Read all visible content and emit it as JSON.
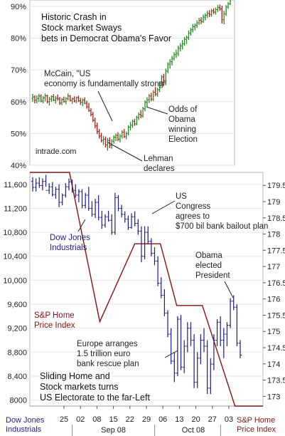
{
  "chart_data": [
    {
      "type": "bar",
      "subtype": "ohlc",
      "title": "Historic Crash in Stock market Sways bets in Democrat Obama's Favor",
      "source": "intrade.com",
      "y_unit": "%",
      "y_ticks": [
        "90%",
        "80%",
        "70%",
        "60%",
        "50%",
        "40%"
      ],
      "ylim": [
        40,
        92
      ],
      "grid": true,
      "series": [
        {
          "values": [
            [
              61,
              62.5,
              60,
              61.5
            ],
            [
              61.5,
              62,
              59.5,
              60.5
            ],
            [
              60.5,
              62,
              59.5,
              61
            ],
            [
              61,
              62.5,
              60,
              61.8
            ],
            [
              61.8,
              62.3,
              59.8,
              60.2
            ],
            [
              60.2,
              61.8,
              59.5,
              61.2
            ],
            [
              61.2,
              62.6,
              60.1,
              61.9
            ],
            [
              61.9,
              62.2,
              59.5,
              60
            ],
            [
              60,
              61.5,
              58.8,
              60.8
            ],
            [
              60.8,
              62,
              60,
              61.6
            ],
            [
              61.6,
              62.4,
              60.2,
              60.5
            ],
            [
              60.5,
              61.8,
              59.4,
              61.1
            ],
            [
              61.1,
              62.3,
              60.3,
              60.9
            ],
            [
              60.9,
              61.5,
              59,
              59.6
            ],
            [
              59.6,
              61.2,
              58.9,
              60.7
            ],
            [
              60.7,
              61.6,
              59.7,
              60.1
            ],
            [
              60.1,
              61.4,
              59.2,
              61
            ],
            [
              61,
              62.6,
              60.4,
              61.8
            ],
            [
              61.8,
              62.1,
              60.1,
              60.4
            ],
            [
              60.4,
              61.3,
              59.3,
              60.9
            ],
            [
              60.9,
              61.7,
              59.8,
              60.2
            ],
            [
              60.2,
              61.6,
              59.5,
              61.3
            ],
            [
              61.3,
              61.9,
              59.9,
              60.3
            ],
            [
              60.3,
              61.2,
              59,
              59.8
            ],
            [
              59.8,
              61.1,
              58.6,
              60.5
            ],
            [
              60.5,
              61.4,
              59.2,
              59.5
            ],
            [
              59.5,
              60.3,
              57.8,
              58.4
            ],
            [
              58.4,
              59.6,
              56.8,
              57.2
            ],
            [
              57.2,
              58,
              55.4,
              56
            ],
            [
              56,
              56.8,
              53.6,
              54.2
            ],
            [
              54.2,
              55,
              51.6,
              52.4
            ],
            [
              52.4,
              53.4,
              49.8,
              50.6
            ],
            [
              50.6,
              51.4,
              48.4,
              49.2
            ],
            [
              49.2,
              50.2,
              47.2,
              47.8
            ],
            [
              47.8,
              49.2,
              46.4,
              48.2
            ],
            [
              48.2,
              49,
              45.6,
              46.4
            ],
            [
              46.4,
              48.6,
              44.6,
              47.8
            ],
            [
              47.8,
              48.8,
              45.4,
              46.2
            ],
            [
              46.2,
              48.2,
              45.2,
              47.6
            ],
            [
              47.6,
              49.4,
              46.8,
              48.8
            ],
            [
              48.8,
              50,
              47.6,
              49.4
            ],
            [
              49.4,
              50.4,
              47.6,
              48.2
            ],
            [
              48.2,
              49.8,
              47.2,
              49.2
            ],
            [
              49.2,
              51,
              48.4,
              50.4
            ],
            [
              50.4,
              51.4,
              48.6,
              49
            ],
            [
              49,
              50.6,
              48.2,
              50
            ],
            [
              50,
              52.6,
              49.4,
              52
            ],
            [
              52,
              53.6,
              51,
              52.6
            ],
            [
              52.6,
              54.4,
              51.8,
              53.8
            ],
            [
              53.8,
              54.6,
              52.4,
              53
            ],
            [
              53,
              55.6,
              52.6,
              55
            ],
            [
              55,
              56.6,
              54.2,
              56
            ],
            [
              56,
              57.4,
              54.8,
              55.6
            ],
            [
              55.6,
              58.4,
              55,
              57.8
            ],
            [
              57.8,
              60.4,
              57,
              59.8
            ],
            [
              59.8,
              61.4,
              58.4,
              60.6
            ],
            [
              60.6,
              62.4,
              59.6,
              61.8
            ],
            [
              61.8,
              62.8,
              60.2,
              60.8
            ],
            [
              60.8,
              63.6,
              60.2,
              63
            ],
            [
              63,
              64.6,
              61.8,
              62.4
            ],
            [
              62.4,
              64.4,
              61.6,
              63.8
            ],
            [
              63.8,
              66.4,
              63,
              65.6
            ],
            [
              65.6,
              68.4,
              65,
              67.8
            ],
            [
              67.8,
              68.8,
              65,
              66
            ],
            [
              66,
              70.4,
              65.2,
              69.6
            ],
            [
              69.6,
              72.4,
              69,
              71.8
            ],
            [
              71.8,
              73.4,
              70.4,
              72.6
            ],
            [
              72.6,
              74.4,
              71.4,
              73.6
            ],
            [
              73.6,
              75.6,
              73,
              74.8
            ],
            [
              74.8,
              76.4,
              73.8,
              75.2
            ],
            [
              75.2,
              77.6,
              74.4,
              76.8
            ],
            [
              76.8,
              78.4,
              75.8,
              77.6
            ],
            [
              77.6,
              79.4,
              76.4,
              78.2
            ],
            [
              78.2,
              80.4,
              77.6,
              79.6
            ],
            [
              79.6,
              80.8,
              78.2,
              80.2
            ],
            [
              80.2,
              82.4,
              79.4,
              81.6
            ],
            [
              81.6,
              83.2,
              80.8,
              82.6
            ],
            [
              82.6,
              84.4,
              81.8,
              83.6
            ],
            [
              83.6,
              84.6,
              82.4,
              84
            ],
            [
              84,
              85.6,
              83.2,
              84.8
            ],
            [
              84.8,
              86.4,
              84.2,
              85.6
            ],
            [
              85.6,
              86.6,
              84.4,
              85.2
            ],
            [
              85.2,
              87.4,
              84.8,
              86.6
            ],
            [
              86.6,
              87.8,
              85.6,
              87.2
            ],
            [
              87.2,
              88.6,
              86.4,
              87.8
            ],
            [
              87.8,
              88.8,
              86.6,
              87.4
            ],
            [
              87.4,
              89.2,
              86.8,
              88.6
            ],
            [
              88.6,
              89.4,
              87.6,
              88.2
            ],
            [
              88.2,
              89.6,
              87.4,
              89
            ],
            [
              89,
              90.4,
              88.2,
              89.6
            ],
            [
              89.6,
              90.6,
              88.6,
              89.2
            ],
            [
              89.2,
              90.2,
              84.6,
              85.8
            ],
            [
              85.8,
              88.6,
              84.4,
              87.6
            ],
            [
              87.6,
              90.4,
              87,
              89.8
            ],
            [
              89.8,
              91.4,
              89.2,
              90.8
            ],
            [
              90.8,
              93,
              90.4,
              92.4
            ]
          ]
        }
      ],
      "annotations": [
        "McCain, \"US economy is fundamentally strong\"",
        "Odds of Obama winning Election"
      ]
    },
    {
      "type": "line",
      "y_ticks_left": [
        "11,600",
        "11,200",
        "10,800",
        "10,400",
        "10,000",
        "9,600",
        "9,200",
        "8,800",
        "8,400",
        "8000"
      ],
      "ylim_left": [
        7900,
        11800
      ],
      "y_ticks_right": [
        "179.5",
        "179",
        "178.5",
        "178",
        "177.5",
        "177",
        "176.5",
        "176",
        "175.5",
        "175",
        "174.5",
        "174",
        "173.5",
        "173"
      ],
      "ylim_right": [
        172.7,
        179.9
      ],
      "x_ticks": [
        "25",
        "02",
        "08",
        "15",
        "22",
        "29",
        "06",
        "13",
        "20",
        "27",
        "03"
      ],
      "x_month_labels": [
        "Sep 08",
        "Oct 08"
      ],
      "grid": true,
      "series": [
        {
          "name": "Dow Jones Industrials",
          "axis": "left",
          "color": "#1c1c8c",
          "values": [
            [
              11650,
              11720,
              11480,
              11550
            ],
            [
              11550,
              11700,
              11480,
              11620
            ],
            [
              11620,
              11720,
              11540,
              11580
            ],
            [
              11580,
              11700,
              11500,
              11650
            ],
            [
              11650,
              11760,
              11560,
              11500
            ],
            [
              11500,
              11620,
              11440,
              11560
            ],
            [
              11560,
              11640,
              11400,
              11430
            ],
            [
              11430,
              11560,
              11360,
              11520
            ],
            [
              11520,
              11600,
              11220,
              11300
            ],
            [
              11300,
              11450,
              11250,
              11420
            ],
            [
              11420,
              11620,
              11380,
              11560
            ],
            [
              11560,
              11700,
              11500,
              11640
            ],
            [
              11640,
              11680,
              11460,
              11500
            ],
            [
              11500,
              11600,
              11380,
              11420
            ],
            [
              11420,
              11520,
              11300,
              11480
            ],
            [
              11480,
              11520,
              11200,
              11250
            ],
            [
              11250,
              11460,
              11200,
              11420
            ],
            [
              11420,
              11560,
              11160,
              11200
            ],
            [
              11200,
              11320,
              11060,
              11100
            ],
            [
              11100,
              11360,
              11040,
              11300
            ],
            [
              11300,
              11420,
              11000,
              11050
            ],
            [
              11050,
              11160,
              10860,
              10920
            ],
            [
              10920,
              11100,
              10880,
              11060
            ],
            [
              11060,
              11160,
              10980,
              11000
            ],
            [
              11000,
              11100,
              10760,
              10800
            ],
            [
              10800,
              11460,
              10760,
              11380
            ],
            [
              11380,
              11420,
              11150,
              11200
            ],
            [
              11200,
              11260,
              11050,
              11100
            ],
            [
              11100,
              11150,
              10960,
              11020
            ],
            [
              11020,
              11080,
              10840,
              10880
            ],
            [
              10880,
              11120,
              10860,
              11060
            ],
            [
              11060,
              11150,
              10900,
              10950
            ],
            [
              10950,
              11020,
              10760,
              10820
            ],
            [
              10820,
              10900,
              10300,
              10400
            ],
            [
              10400,
              10900,
              10350,
              10800
            ],
            [
              10800,
              10900,
              10600,
              10650
            ],
            [
              10650,
              10700,
              10400,
              10450
            ],
            [
              10450,
              10550,
              10250,
              10320
            ],
            [
              10320,
              10400,
              9900,
              9950
            ],
            [
              9950,
              10050,
              9700,
              9750
            ],
            [
              9750,
              9850,
              9400,
              9450
            ],
            [
              9450,
              9500,
              9050,
              9100
            ],
            [
              9100,
              9200,
              8600,
              8650
            ],
            [
              8650,
              8800,
              8300,
              8450
            ],
            [
              8450,
              9400,
              8400,
              9350
            ],
            [
              9350,
              9420,
              8500,
              8550
            ],
            [
              8550,
              9000,
              8450,
              8900
            ],
            [
              8900,
              9300,
              8800,
              9200
            ],
            [
              9200,
              9300,
              8900,
              9000
            ],
            [
              9000,
              9100,
              8200,
              8300
            ],
            [
              8300,
              8800,
              8200,
              8700
            ],
            [
              8700,
              9100,
              8600,
              9000
            ],
            [
              9000,
              9200,
              8800,
              8900
            ],
            [
              8900,
              9000,
              8100,
              8200
            ],
            [
              8200,
              8700,
              8100,
              8600
            ],
            [
              8600,
              9100,
              8500,
              9000
            ],
            [
              9000,
              9350,
              8900,
              9300
            ],
            [
              9300,
              9400,
              8900,
              9000
            ],
            [
              9000,
              9200,
              8700,
              9100
            ],
            [
              9100,
              9300,
              8900,
              9250
            ],
            [
              9250,
              9700,
              9200,
              9650
            ],
            [
              9650,
              9750,
              9500,
              9550
            ],
            [
              9550,
              9600,
              8900,
              8950
            ],
            [
              8950,
              9000,
              8700,
              8750
            ]
          ]
        },
        {
          "name": "S&P Home Price Index",
          "axis": "right",
          "color": "#8a1010",
          "x": [
            0,
            0.17,
            0.3,
            0.45,
            0.56,
            0.63,
            0.74,
            0.88,
            1
          ],
          "values": [
            179.9,
            179.9,
            175.3,
            177.7,
            177.7,
            175.8,
            175.8,
            172.7,
            172.7
          ]
        }
      ],
      "annotations": [
        "Lehman declares bankruptcy",
        "US Congress agrees to $700 bil bank bailout plan",
        "Obama elected President",
        "Europe arranges 1.5 trillion euro bank rescue plan",
        "Sliding Home and Stock markets turns US Electorate to the far-Left"
      ]
    }
  ]
}
